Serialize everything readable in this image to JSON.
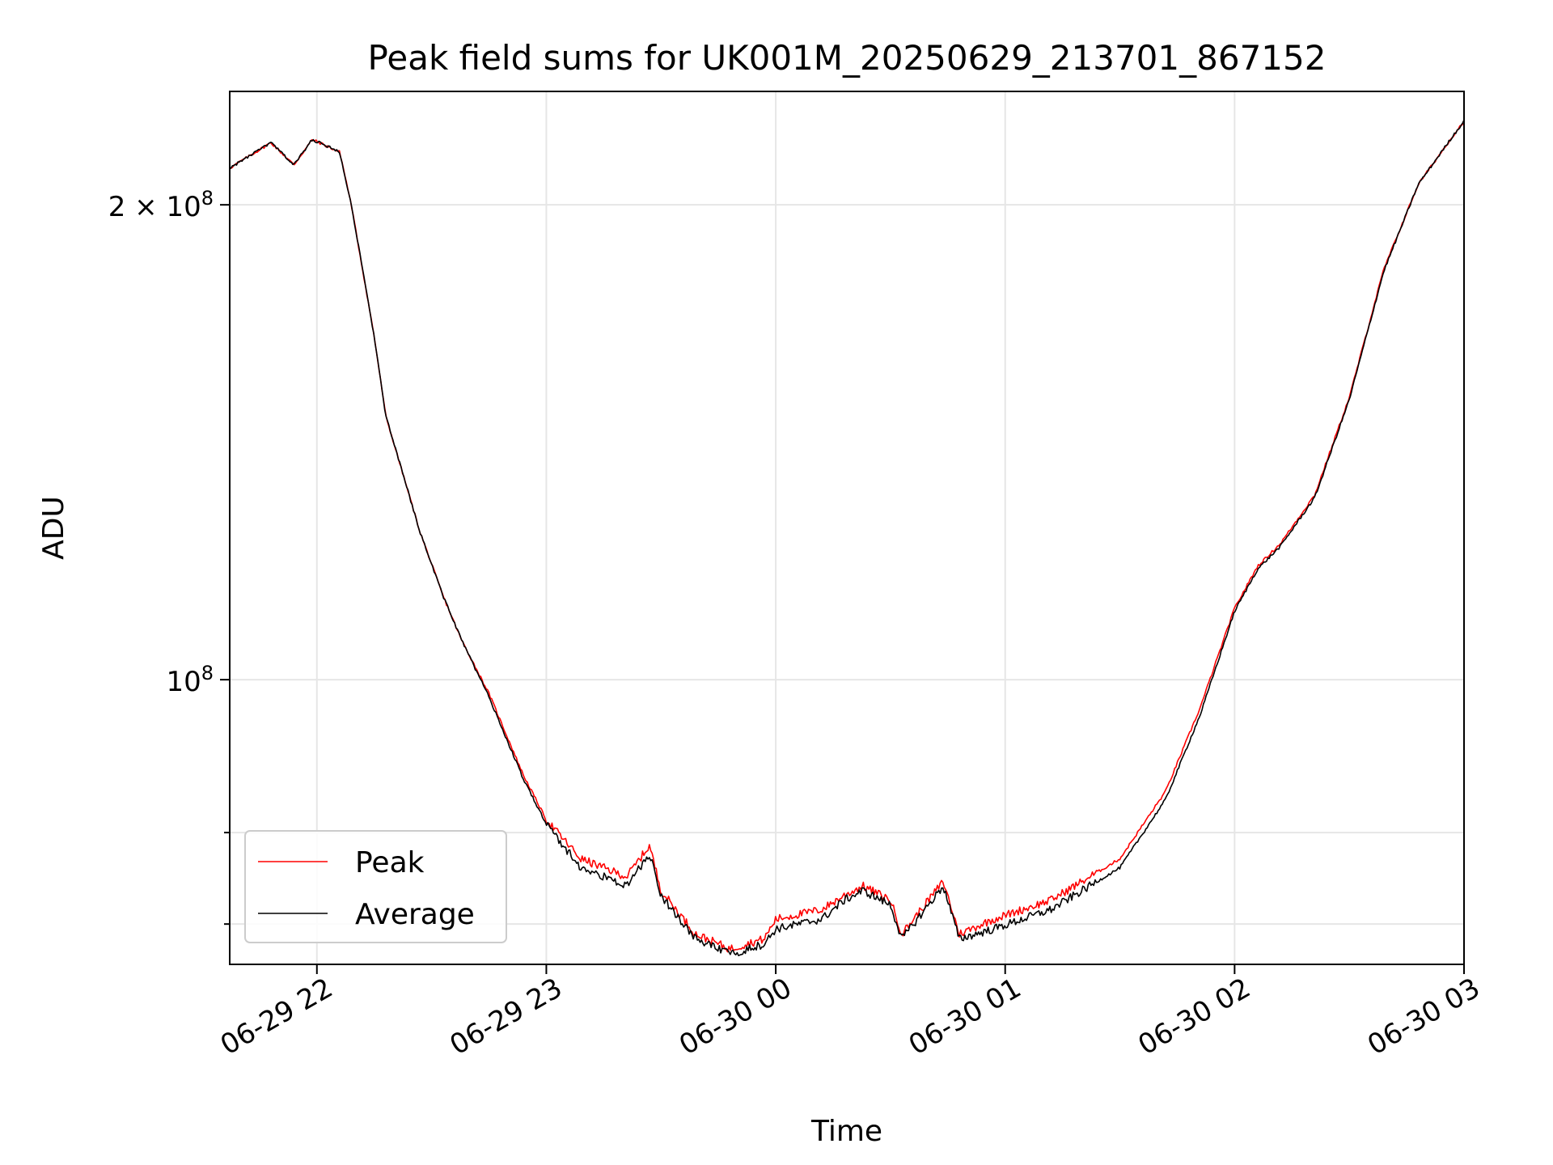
{
  "chart_data": {
    "type": "line",
    "title": "Peak field sums for UK001M_20250629_213701_867152",
    "xlabel": "Time",
    "ylabel": "ADU",
    "yscale": "log",
    "grid": true,
    "legend_position": "bottom-left",
    "x_ticks": [
      "06-29 22",
      "06-29 23",
      "06-30 00",
      "06-30 01",
      "06-30 02",
      "06-30 03"
    ],
    "y_tick_labels": {
      "major_2e8": {
        "base": "2 × 10",
        "exp": "8"
      },
      "major_1e8": {
        "base": "10",
        "exp": "8"
      }
    },
    "x_range_hours_since_midnight_0629": [
      21.62,
      27.0
    ],
    "ylim": [
      66000000,
      236000000
    ],
    "series": [
      {
        "name": "Peak",
        "color": "#ff0000",
        "points": [
          [
            21.62,
            211000000
          ],
          [
            21.8,
            219000000
          ],
          [
            21.9,
            212000000
          ],
          [
            21.98,
            220000000
          ],
          [
            22.1,
            216000000
          ],
          [
            22.15,
            200000000
          ],
          [
            22.25,
            165000000
          ],
          [
            22.3,
            147000000
          ],
          [
            22.45,
            124000000
          ],
          [
            22.55,
            113000000
          ],
          [
            22.63,
            106000000
          ],
          [
            22.75,
            98000000
          ],
          [
            22.9,
            87000000
          ],
          [
            23.0,
            81500000
          ],
          [
            23.15,
            77000000
          ],
          [
            23.35,
            75000000
          ],
          [
            23.45,
            78500000
          ],
          [
            23.5,
            73500000
          ],
          [
            23.65,
            69000000
          ],
          [
            23.8,
            67500000
          ],
          [
            23.95,
            68500000
          ],
          [
            24.0,
            70500000
          ],
          [
            24.2,
            71500000
          ],
          [
            24.3,
            73000000
          ],
          [
            24.38,
            74000000
          ],
          [
            24.5,
            72500000
          ],
          [
            24.55,
            69000000
          ],
          [
            24.65,
            72000000
          ],
          [
            24.73,
            74500000
          ],
          [
            24.8,
            69000000
          ],
          [
            24.95,
            70500000
          ],
          [
            25.2,
            72500000
          ],
          [
            25.5,
            77000000
          ],
          [
            25.7,
            85000000
          ],
          [
            25.85,
            96000000
          ],
          [
            26.0,
            111000000
          ],
          [
            26.1,
            118000000
          ],
          [
            26.2,
            122000000
          ],
          [
            26.35,
            131000000
          ],
          [
            26.5,
            151000000
          ],
          [
            26.65,
            182000000
          ],
          [
            26.8,
            206000000
          ],
          [
            26.95,
            221000000
          ],
          [
            27.0,
            226000000
          ]
        ]
      },
      {
        "name": "Average",
        "color": "#000000",
        "points": [
          [
            21.62,
            211000000
          ],
          [
            21.8,
            219000000
          ],
          [
            21.9,
            212000000
          ],
          [
            21.98,
            220000000
          ],
          [
            22.1,
            216000000
          ],
          [
            22.15,
            200000000
          ],
          [
            22.25,
            165000000
          ],
          [
            22.3,
            147000000
          ],
          [
            22.45,
            124000000
          ],
          [
            22.55,
            113000000
          ],
          [
            22.63,
            106000000
          ],
          [
            22.75,
            97500000
          ],
          [
            22.9,
            86500000
          ],
          [
            23.0,
            81000000
          ],
          [
            23.15,
            76000000
          ],
          [
            23.35,
            74000000
          ],
          [
            23.45,
            77500000
          ],
          [
            23.5,
            73000000
          ],
          [
            23.65,
            68500000
          ],
          [
            23.8,
            67000000
          ],
          [
            23.95,
            68000000
          ],
          [
            24.0,
            69500000
          ],
          [
            24.2,
            70500000
          ],
          [
            24.3,
            72500000
          ],
          [
            24.38,
            73500000
          ],
          [
            24.5,
            72000000
          ],
          [
            24.55,
            68500000
          ],
          [
            24.65,
            71500000
          ],
          [
            24.73,
            74000000
          ],
          [
            24.8,
            68500000
          ],
          [
            24.95,
            69500000
          ],
          [
            25.2,
            71500000
          ],
          [
            25.5,
            76000000
          ],
          [
            25.7,
            84000000
          ],
          [
            25.85,
            95000000
          ],
          [
            26.0,
            110500000
          ],
          [
            26.1,
            117500000
          ],
          [
            26.2,
            121500000
          ],
          [
            26.35,
            130500000
          ],
          [
            26.5,
            150500000
          ],
          [
            26.65,
            181500000
          ],
          [
            26.8,
            206000000
          ],
          [
            26.95,
            221000000
          ],
          [
            27.0,
            226000000
          ]
        ]
      }
    ]
  }
}
